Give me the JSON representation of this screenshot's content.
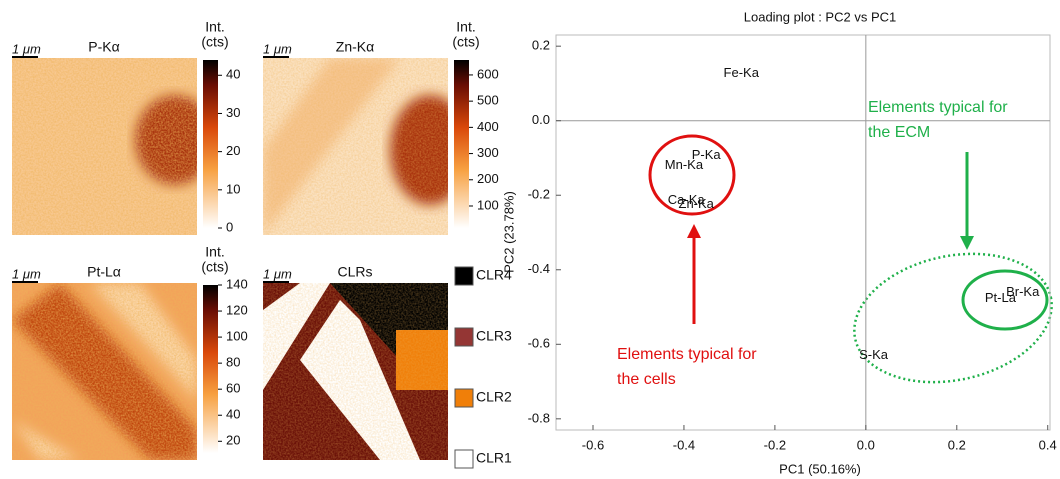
{
  "maps": [
    {
      "title": "P-Kα",
      "scale": "1 μm",
      "colorbar_title": [
        "Int.",
        "(cts)"
      ],
      "colorbar_lim": [
        0,
        44
      ],
      "colorbar_ticks": [
        0,
        10,
        20,
        30,
        40
      ]
    },
    {
      "title": "Zn-Kα",
      "scale": "1 μm",
      "colorbar_title": [
        "Int.",
        "(cts)"
      ],
      "colorbar_lim": [
        16,
        657
      ],
      "colorbar_ticks": [
        100,
        200,
        300,
        400,
        500,
        600
      ]
    },
    {
      "title": "Pt-Lα",
      "scale": "1 μm",
      "colorbar_title": [
        "Int.",
        "(cts)"
      ],
      "colorbar_lim": [
        11,
        140
      ],
      "colorbar_ticks": [
        20,
        40,
        60,
        80,
        100,
        120,
        140
      ]
    },
    {
      "title": "CLRs",
      "scale": "1 μm",
      "legend": [
        {
          "name": "CLR4",
          "color": "#000000"
        },
        {
          "name": "CLR3",
          "color": "#943634"
        },
        {
          "name": "CLR2",
          "color": "#f07f09"
        },
        {
          "name": "CLR1",
          "color": "#ffffff"
        }
      ]
    }
  ],
  "chart_data": {
    "type": "scatter",
    "title": "Loading plot :  PC2  vs PC1",
    "x_label": "PC1 (50.16%)",
    "y_label": "PC2 (23.78%)",
    "point_labels": [
      "Fe-Ka",
      "P-Ka",
      "Mn-Ka",
      "Ca-Ka",
      "Zn-Ka",
      "Pt-La",
      "Br-Ka",
      "S-Ka"
    ],
    "x": [
      -0.274,
      -0.351,
      -0.4,
      -0.395,
      -0.373,
      0.296,
      0.345,
      0.017
    ],
    "values": [
      0.127,
      -0.093,
      -0.12,
      -0.214,
      -0.225,
      -0.477,
      -0.461,
      -0.63
    ],
    "xlim": [
      -0.6,
      0.405
    ],
    "ylim": [
      -0.83,
      0.23
    ],
    "xticks": [
      -0.6,
      -0.4,
      -0.2,
      {
        "value": 0,
        "label": "0.0"
      },
      0.2,
      0.4
    ],
    "yticks": [
      0.2,
      {
        "value": 0,
        "label": "0.0"
      },
      -0.2,
      -0.4,
      -0.6,
      -0.8
    ],
    "annotations": [
      [
        "Elements typical for",
        "the cells"
      ],
      [
        "Elements typical for",
        "the ECM"
      ]
    ]
  }
}
